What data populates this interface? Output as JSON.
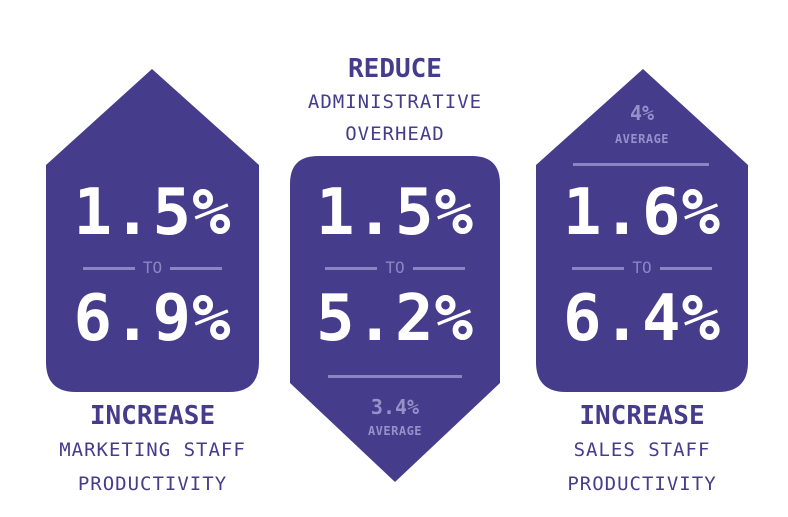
{
  "colors": {
    "primary": "#453c8c",
    "muted": "#8b85c4",
    "background": "#ffffff"
  },
  "left": {
    "from": "1.5%",
    "connector": "TO",
    "to": "6.9%",
    "caption_head": "INCREASE",
    "caption_line1": "MARKETING STAFF",
    "caption_line2": "PRODUCTIVITY"
  },
  "middle": {
    "heading": "REDUCE",
    "heading_line1": "ADMINISTRATIVE",
    "heading_line2": "OVERHEAD",
    "from": "1.5%",
    "connector": "TO",
    "to": "5.2%",
    "average_value": "3.4%",
    "average_label": "AVERAGE"
  },
  "right": {
    "average_value": "4%",
    "average_label": "AVERAGE",
    "from": "1.6%",
    "connector": "TO",
    "to": "6.4%",
    "caption_head": "INCREASE",
    "caption_line1": "SALES STAFF",
    "caption_line2": "PRODUCTIVITY"
  }
}
